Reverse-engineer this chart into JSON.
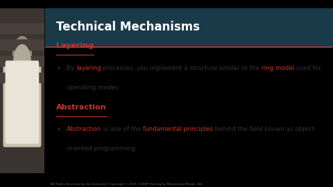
{
  "title": "Technical Mechanisms",
  "title_color": "#ffffff",
  "header_bg": "#1a3a4a",
  "slide_bg": "#ffffff",
  "outer_bg": "#000000",
  "header_line_color": "#c0392b",
  "section1_heading": "Layering",
  "section1_color": "#c0392b",
  "section2_heading": "Abstraction",
  "section2_color": "#c0392b",
  "footer_text": "All Rights Reserved by the Instructor | Copyright © 2021 | CISSP Training by Muhammad Miradi  366",
  "line1_parts": [
    [
      "By ",
      "#333333"
    ],
    [
      "layering",
      "#c0392b"
    ],
    [
      " processes, you implement a structure similar to the ",
      "#333333"
    ],
    [
      "ring model",
      "#c0392b"
    ],
    [
      " used for",
      "#333333"
    ]
  ],
  "line2_parts": [
    [
      "operating modes",
      "#333333"
    ]
  ],
  "line3_parts": [
    [
      "Abstraction",
      "#c0392b"
    ],
    [
      " is one of the ",
      "#333333"
    ],
    [
      "fundamental principles",
      "#c0392b"
    ],
    [
      " behind the field known as object-",
      "#333333"
    ]
  ],
  "line4_parts": [
    [
      "oriented programming.",
      "#333333"
    ]
  ]
}
